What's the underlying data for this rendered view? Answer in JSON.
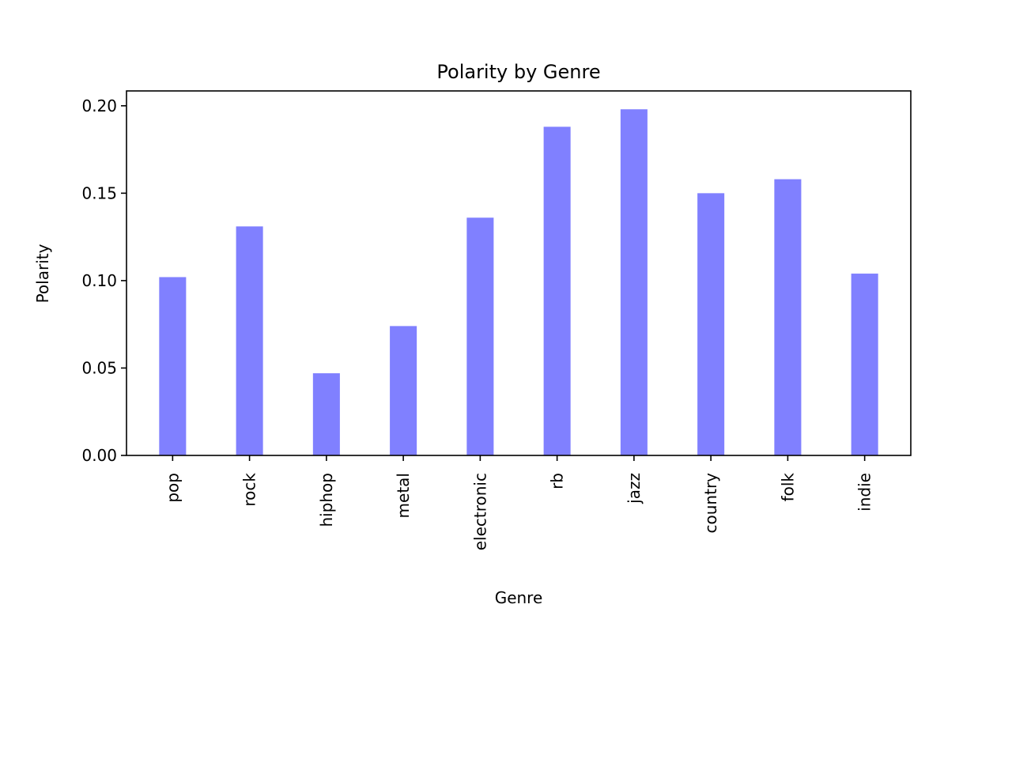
{
  "chart_data": {
    "type": "bar",
    "title": "Polarity by Genre",
    "xlabel": "Genre",
    "ylabel": "Polarity",
    "categories": [
      "pop",
      "rock",
      "hiphop",
      "metal",
      "electronic",
      "rb",
      "jazz",
      "country",
      "folk",
      "indie"
    ],
    "values": [
      0.102,
      0.131,
      0.047,
      0.074,
      0.136,
      0.188,
      0.198,
      0.15,
      0.158,
      0.104
    ],
    "ylim": [
      0,
      0.2085
    ],
    "yticks": [
      "0.00",
      "0.05",
      "0.10",
      "0.15",
      "0.20"
    ],
    "ytick_values": [
      0,
      0.05,
      0.1,
      0.15,
      0.2
    ],
    "bar_color": "#8080ff",
    "grid": false,
    "legend": "none"
  }
}
